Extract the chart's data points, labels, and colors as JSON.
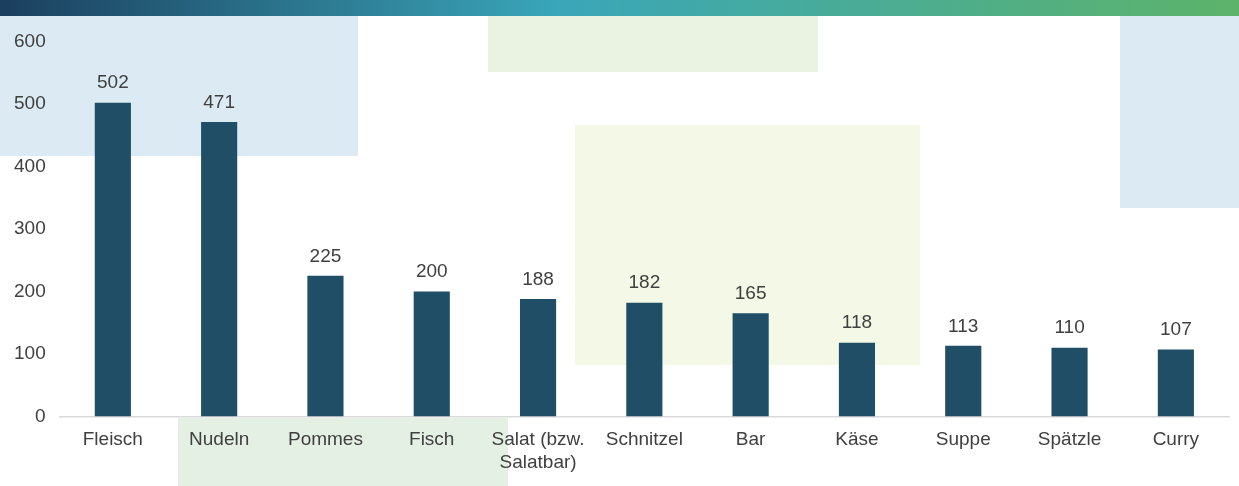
{
  "chart_data": {
    "type": "bar",
    "categories": [
      "Fleisch",
      "Nudeln",
      "Pommes",
      "Fisch",
      "Salat (bzw. Salatbar)",
      "Schnitzel",
      "Bar",
      "Käse",
      "Suppe",
      "Spätzle",
      "Curry"
    ],
    "values": [
      502,
      471,
      225,
      200,
      188,
      182,
      165,
      118,
      113,
      110,
      107
    ],
    "color": "#1f4e66",
    "ylim": [
      0,
      600
    ],
    "yticks": [
      0,
      100,
      200,
      300,
      400,
      500,
      600
    ],
    "grid": false,
    "legend": false,
    "data_labels": true
  }
}
